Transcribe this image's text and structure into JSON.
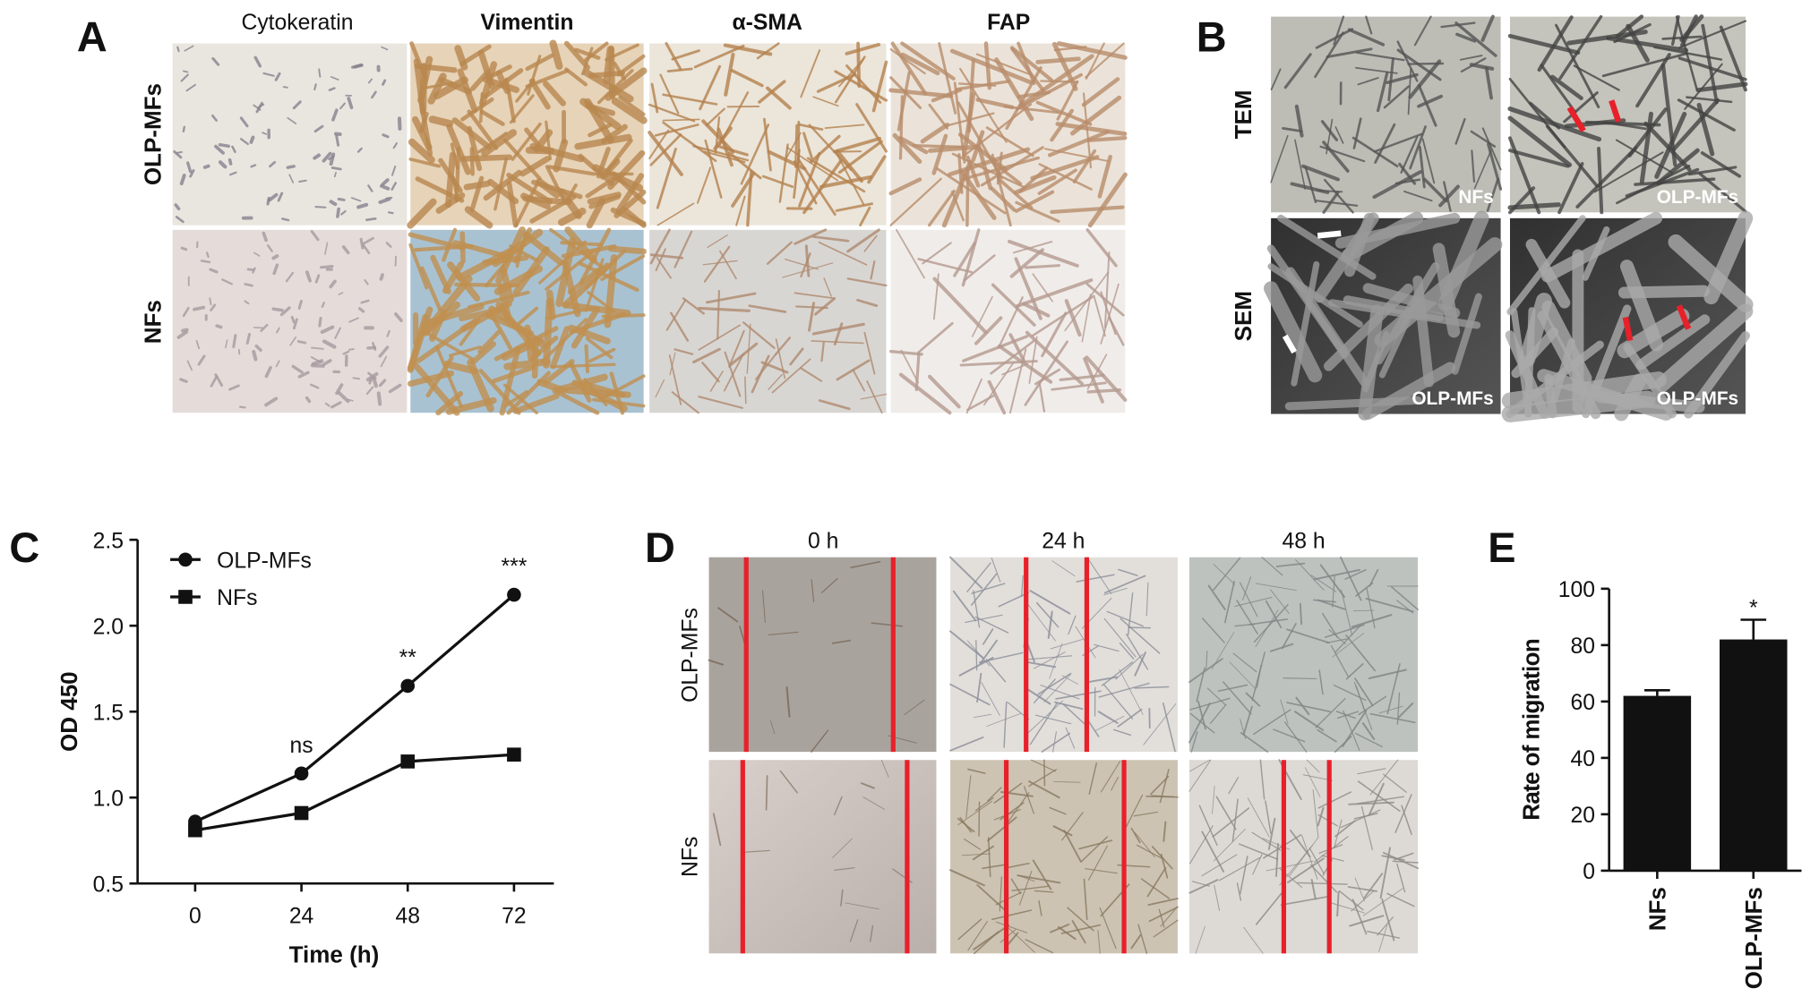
{
  "panels": {
    "A": {
      "label": "A",
      "columns": [
        "Cytokeratin",
        "Vimentin",
        "α-SMA",
        "FAP"
      ],
      "rows": [
        "OLP-MFs",
        "NFs"
      ]
    },
    "B": {
      "label": "B",
      "rows": [
        "TEM",
        "SEM"
      ],
      "image_labels": [
        [
          "NFs",
          "OLP-MFs"
        ],
        [
          "OLP-MFs",
          "OLP-MFs"
        ]
      ]
    },
    "C": {
      "label": "C"
    },
    "D": {
      "label": "D",
      "columns": [
        "0 h",
        "24 h",
        "48 h"
      ],
      "rows": [
        "OLP-MFs",
        "NFs"
      ]
    },
    "E": {
      "label": "E"
    }
  },
  "chart_data": [
    {
      "type": "line",
      "x_label": "Time (h)",
      "y_label": "OD 450",
      "x": [
        0,
        24,
        48,
        72
      ],
      "xlim": [
        -13,
        81
      ],
      "xticks": [
        0,
        24,
        48,
        72
      ],
      "ylim": [
        0.5,
        2.5
      ],
      "yticks": [
        0.5,
        {
          "value": 1,
          "label": "1.0"
        },
        1.5,
        {
          "value": 2,
          "label": "2.0"
        },
        2.5
      ],
      "series": [
        {
          "name": "OLP-MFs",
          "color": "#111111",
          "marker": "circle",
          "values": [
            0.86,
            1.14,
            1.65,
            2.18
          ]
        },
        {
          "name": "NFs",
          "color": "#111111",
          "marker": "square",
          "values": [
            0.81,
            0.91,
            1.21,
            1.25
          ]
        }
      ],
      "annotations": [
        {
          "text": "ns",
          "x": 24
        },
        {
          "text": "**",
          "x": 48
        },
        {
          "text": "***",
          "x": 72
        }
      ]
    },
    {
      "type": "bar",
      "y_label": "Rate of migration",
      "categories": [
        "NFs",
        "OLP-MFs"
      ],
      "values": [
        62,
        82
      ],
      "errors": [
        2,
        7
      ],
      "color": "#111111",
      "ylim": [
        0,
        100
      ],
      "yticks": [
        0,
        20,
        40,
        60,
        80,
        100
      ],
      "annotations": [
        {
          "text": "*",
          "category": "OLP-MFs"
        }
      ]
    }
  ]
}
